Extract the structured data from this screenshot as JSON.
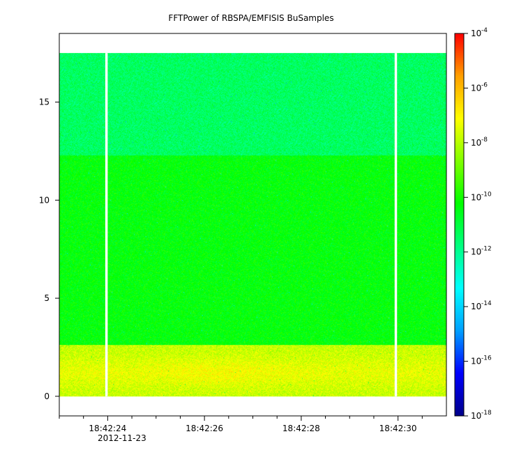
{
  "chart_data": {
    "type": "heatmap",
    "title": "FFTPower of RBSPA/EMFISIS  BuSamples",
    "xlabel": "",
    "ylabel": "",
    "x": {
      "unit": "seconds",
      "range": [
        "18:42:23.0",
        "18:42:31.0"
      ],
      "ticks": [
        {
          "t": 24,
          "label": "18:42:24"
        },
        {
          "t": 26,
          "label": "18:42:26"
        },
        {
          "t": 28,
          "label": "18:42:28"
        },
        {
          "t": 30,
          "label": "18:42:30"
        }
      ],
      "minor_ticks": [
        23.0,
        23.5,
        24.5,
        25,
        25.5,
        26.5,
        27,
        27.5,
        28.5,
        29,
        29.5,
        30.5
      ],
      "date_label": "2012-11-23"
    },
    "y": {
      "range": [
        -1,
        18.5
      ],
      "ticks": [
        0,
        5,
        10,
        15
      ],
      "data_range": [
        0,
        17.5
      ]
    },
    "colorbar": {
      "scale": "log",
      "range": [
        1e-18,
        0.0001
      ],
      "tick_base": "10",
      "tick_exponents": [
        "-18",
        "-16",
        "-14",
        "-12",
        "-10",
        "-8",
        "-6",
        "-4"
      ],
      "colors": [
        "#00008b",
        "#0000ff",
        "#00a0ff",
        "#00ffff",
        "#00ff80",
        "#00ff00",
        "#80ff00",
        "#ffff00",
        "#ffa000",
        "#ff0000"
      ]
    },
    "gaps": [
      {
        "start": 23.95,
        "end": 24.0
      },
      {
        "start": 29.93,
        "end": 29.98
      }
    ],
    "bands": [
      {
        "y_from": 0,
        "y_to": 2.6,
        "log_power": -7.8,
        "description_level": "high"
      },
      {
        "y_from": 2.6,
        "y_to": 12.3,
        "log_power": -10.3,
        "description_level": "medium"
      },
      {
        "y_from": 12.3,
        "y_to": 17.5,
        "log_power": -11.4,
        "description_level": "low"
      }
    ]
  }
}
